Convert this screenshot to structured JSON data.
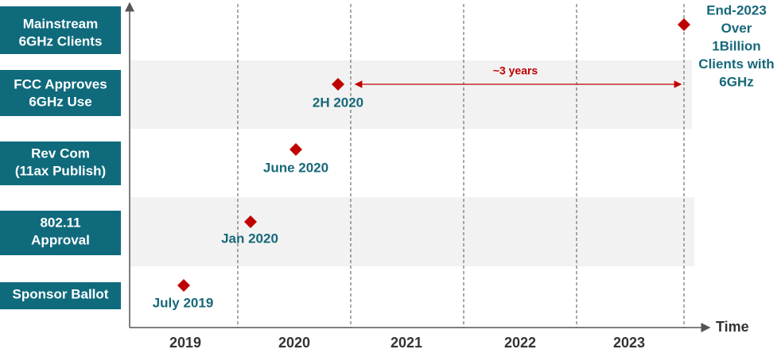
{
  "rows": [
    {
      "label": [
        "Mainstream",
        "6GHz Clients"
      ]
    },
    {
      "label": [
        "FCC Approves",
        "6GHz Use"
      ]
    },
    {
      "label": [
        "Rev Com",
        "(11ax Publish)"
      ]
    },
    {
      "label": [
        "802.11",
        "Approval"
      ]
    },
    {
      "label": [
        "Sponsor Ballot"
      ]
    }
  ],
  "milestones": [
    {
      "label": [
        "End-2023",
        "Over",
        "1Billion",
        "Clients with",
        "6GHz"
      ]
    },
    {
      "label": [
        "2H 2020"
      ]
    },
    {
      "label": [
        "June 2020"
      ]
    },
    {
      "label": [
        "Jan 2020"
      ]
    },
    {
      "label": [
        "July 2019"
      ]
    }
  ],
  "years": [
    "2019",
    "2020",
    "2021",
    "2022",
    "2023"
  ],
  "axis_title": "Time",
  "annotation": "~3 years"
}
